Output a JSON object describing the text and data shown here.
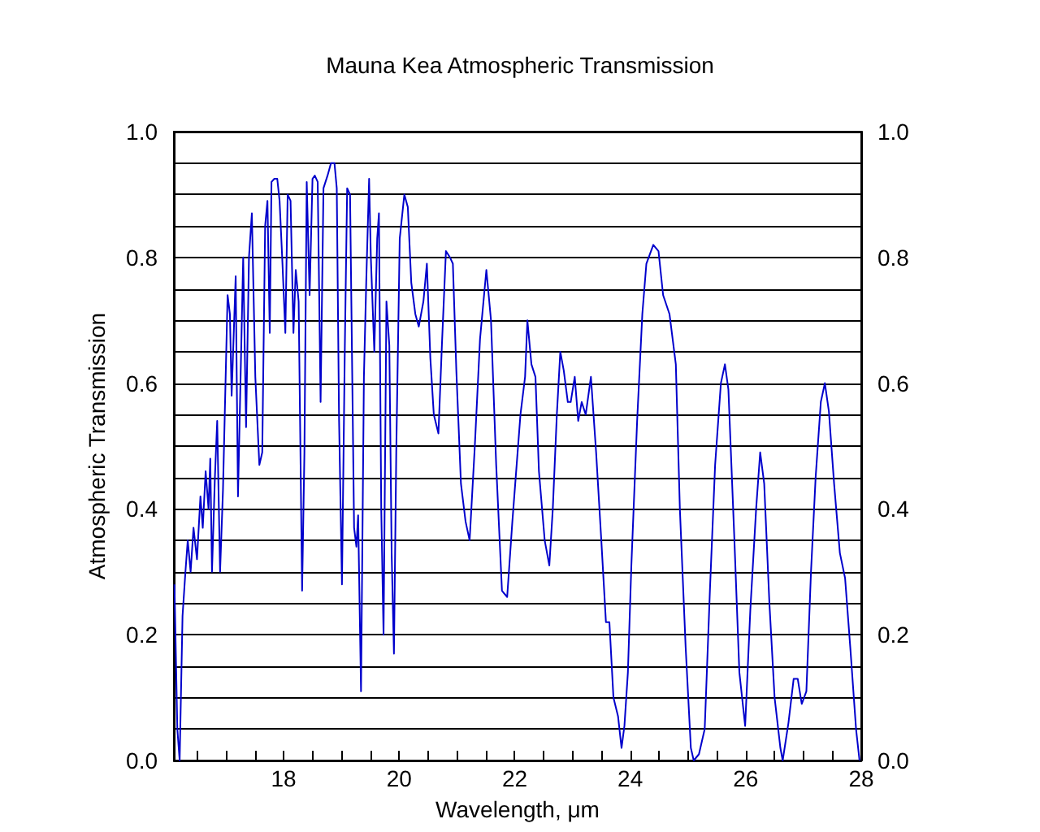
{
  "chart_data": {
    "type": "line",
    "title": "Mauna Kea Atmospheric Transmission",
    "xlabel": "Wavelength, μm",
    "ylabel": "Atmospheric Transmission",
    "x": [
      16.11,
      16.16,
      16.2,
      16.25,
      16.3,
      16.34,
      16.39,
      16.44,
      16.5,
      16.56,
      16.6,
      16.65,
      16.7,
      16.73,
      16.76,
      16.81,
      16.85,
      16.9,
      16.95,
      17.03,
      17.07,
      17.1,
      17.17,
      17.21,
      17.3,
      17.35,
      17.4,
      17.45,
      17.51,
      17.58,
      17.63,
      17.68,
      17.72,
      17.76,
      17.79,
      17.84,
      17.89,
      17.93,
      17.98,
      18.03,
      18.07,
      18.12,
      18.17,
      18.21,
      18.26,
      18.32,
      18.36,
      18.4,
      18.45,
      18.5,
      18.54,
      18.59,
      18.64,
      18.69,
      18.76,
      18.82,
      18.88,
      18.92,
      18.96,
      19.01,
      19.06,
      19.1,
      19.15,
      19.22,
      19.26,
      19.29,
      19.34,
      19.39,
      19.43,
      19.48,
      19.51,
      19.57,
      19.62,
      19.65,
      19.69,
      19.73,
      19.78,
      19.83,
      19.87,
      19.91,
      19.95,
      20.01,
      20.09,
      20.15,
      20.21,
      20.28,
      20.34,
      20.42,
      20.48,
      20.54,
      20.6,
      20.68,
      20.74,
      20.81,
      20.88,
      20.93,
      20.99,
      21.07,
      21.15,
      21.22,
      21.31,
      21.4,
      21.51,
      21.59,
      21.68,
      21.78,
      21.87,
      21.96,
      22.1,
      22.18,
      22.22,
      22.29,
      22.36,
      22.42,
      22.52,
      22.6,
      22.66,
      22.73,
      22.79,
      22.85,
      22.92,
      22.97,
      23.04,
      23.1,
      23.16,
      23.23,
      23.32,
      23.41,
      23.5,
      23.58,
      23.64,
      23.71,
      23.79,
      23.85,
      23.9,
      23.96,
      24.02,
      24.12,
      24.21,
      24.28,
      24.4,
      24.49,
      24.57,
      24.68,
      24.79,
      24.86,
      24.96,
      25.05,
      25.1,
      25.19,
      25.29,
      25.38,
      25.47,
      25.57,
      25.64,
      25.7,
      25.8,
      25.89,
      25.99,
      26.08,
      26.18,
      26.25,
      26.32,
      26.41,
      26.5,
      26.6,
      26.64,
      26.74,
      26.83,
      26.9,
      26.97,
      27.05,
      27.13,
      27.21,
      27.3,
      27.37,
      27.44,
      27.53,
      27.63,
      27.72,
      27.81,
      27.91,
      27.97
    ],
    "series": [
      {
        "color": "#0000cc",
        "values": [
          0.28,
          0.05,
          0.0,
          0.23,
          0.3,
          0.35,
          0.3,
          0.37,
          0.32,
          0.42,
          0.37,
          0.46,
          0.4,
          0.48,
          0.3,
          0.45,
          0.54,
          0.3,
          0.43,
          0.74,
          0.71,
          0.58,
          0.77,
          0.42,
          0.8,
          0.53,
          0.8,
          0.87,
          0.61,
          0.47,
          0.49,
          0.85,
          0.89,
          0.68,
          0.92,
          0.925,
          0.925,
          0.89,
          0.79,
          0.68,
          0.9,
          0.89,
          0.68,
          0.78,
          0.73,
          0.27,
          0.49,
          0.92,
          0.74,
          0.925,
          0.93,
          0.92,
          0.57,
          0.91,
          0.93,
          0.95,
          0.95,
          0.91,
          0.54,
          0.28,
          0.66,
          0.91,
          0.9,
          0.37,
          0.34,
          0.39,
          0.11,
          0.61,
          0.76,
          0.925,
          0.8,
          0.65,
          0.83,
          0.87,
          0.4,
          0.2,
          0.73,
          0.66,
          0.33,
          0.17,
          0.49,
          0.83,
          0.9,
          0.88,
          0.76,
          0.71,
          0.69,
          0.73,
          0.79,
          0.64,
          0.55,
          0.52,
          0.66,
          0.81,
          0.8,
          0.79,
          0.62,
          0.44,
          0.38,
          0.35,
          0.5,
          0.67,
          0.78,
          0.7,
          0.47,
          0.27,
          0.26,
          0.38,
          0.55,
          0.61,
          0.7,
          0.63,
          0.61,
          0.46,
          0.35,
          0.31,
          0.4,
          0.55,
          0.65,
          0.62,
          0.57,
          0.57,
          0.61,
          0.54,
          0.57,
          0.55,
          0.61,
          0.49,
          0.35,
          0.22,
          0.22,
          0.1,
          0.07,
          0.02,
          0.055,
          0.14,
          0.31,
          0.54,
          0.71,
          0.79,
          0.82,
          0.81,
          0.74,
          0.71,
          0.63,
          0.4,
          0.18,
          0.02,
          0.0,
          0.01,
          0.05,
          0.27,
          0.47,
          0.6,
          0.63,
          0.59,
          0.36,
          0.14,
          0.055,
          0.24,
          0.4,
          0.49,
          0.44,
          0.25,
          0.1,
          0.02,
          0.0,
          0.06,
          0.13,
          0.13,
          0.09,
          0.11,
          0.3,
          0.45,
          0.57,
          0.6,
          0.555,
          0.44,
          0.33,
          0.29,
          0.18,
          0.05,
          0.0
        ]
      }
    ],
    "xlim": [
      16.1,
      28
    ],
    "xticks": [
      {
        "value": 16.5,
        "label": null
      },
      {
        "value": 17,
        "label": null
      },
      {
        "value": 17.5,
        "label": null
      },
      18,
      {
        "value": 18.5,
        "label": null
      },
      {
        "value": 19,
        "label": null
      },
      {
        "value": 19.5,
        "label": null
      },
      20,
      {
        "value": 20.5,
        "label": null
      },
      {
        "value": 21,
        "label": null
      },
      {
        "value": 21.5,
        "label": null
      },
      22,
      {
        "value": 22.5,
        "label": null
      },
      {
        "value": 23,
        "label": null
      },
      {
        "value": 23.5,
        "label": null
      },
      24,
      {
        "value": 24.5,
        "label": null
      },
      {
        "value": 25,
        "label": null
      },
      {
        "value": 25.5,
        "label": null
      },
      26,
      {
        "value": 26.5,
        "label": null
      },
      {
        "value": 27,
        "label": null
      },
      {
        "value": 27.5,
        "label": null
      },
      28
    ],
    "ylim": [
      0,
      1
    ],
    "yticks": [
      {
        "value": 0,
        "label": "0.0"
      },
      {
        "value": 0.05,
        "label": null
      },
      {
        "value": 0.1,
        "label": null
      },
      {
        "value": 0.15,
        "label": null
      },
      0.2,
      {
        "value": 0.25,
        "label": null
      },
      {
        "value": 0.3,
        "label": null
      },
      {
        "value": 0.35,
        "label": null
      },
      0.4,
      {
        "value": 0.45,
        "label": null
      },
      {
        "value": 0.5,
        "label": null
      },
      {
        "value": 0.55,
        "label": null
      },
      0.6,
      {
        "value": 0.65,
        "label": null
      },
      {
        "value": 0.7,
        "label": null
      },
      {
        "value": 0.75,
        "label": null
      },
      0.8,
      {
        "value": 0.85,
        "label": null
      },
      {
        "value": 0.9,
        "label": null
      },
      {
        "value": 0.95,
        "label": null
      },
      {
        "value": 1,
        "label": "1.0"
      }
    ],
    "y2lim": [
      0,
      1
    ],
    "y2ticks": [
      {
        "value": 0,
        "label": "0.0"
      },
      0.2,
      0.4,
      0.6,
      0.8,
      {
        "value": 1,
        "label": "1.0"
      }
    ],
    "grid": "y",
    "marker": "none",
    "line_style": "solid"
  }
}
